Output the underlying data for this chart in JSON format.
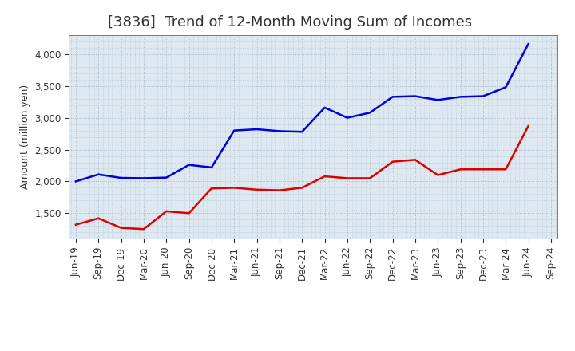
{
  "title": "[3836]  Trend of 12-Month Moving Sum of Incomes",
  "ylabel": "Amount (million yen)",
  "x_labels": [
    "Jun-19",
    "Sep-19",
    "Dec-19",
    "Mar-20",
    "Jun-20",
    "Sep-20",
    "Dec-20",
    "Mar-21",
    "Jun-21",
    "Sep-21",
    "Dec-21",
    "Mar-22",
    "Jun-22",
    "Sep-22",
    "Dec-22",
    "Mar-23",
    "Jun-23",
    "Sep-23",
    "Dec-23",
    "Mar-24",
    "Jun-24",
    "Sep-24"
  ],
  "ordinary_income": [
    2000,
    2110,
    2055,
    2050,
    2060,
    2260,
    2220,
    2800,
    2820,
    2790,
    2780,
    3160,
    3000,
    3080,
    3330,
    3340,
    3280,
    3330,
    3340,
    3480,
    4160,
    null
  ],
  "net_income": [
    1320,
    1420,
    1270,
    1250,
    1530,
    1500,
    1890,
    1900,
    1870,
    1860,
    1900,
    2080,
    2050,
    2050,
    2310,
    2340,
    2100,
    2190,
    2190,
    2190,
    2870,
    null
  ],
  "ordinary_color": "#0000dd",
  "net_color": "#dd0000",
  "ylim_min": 1100,
  "ylim_max": 4300,
  "yticks": [
    1500,
    2000,
    2500,
    3000,
    3500,
    4000
  ],
  "plot_bg_color": "#dde8f0",
  "fig_bg_color": "#ffffff",
  "grid_color": "#aab8c8",
  "title_fontsize": 13,
  "title_color": "#333333",
  "label_fontsize": 9,
  "tick_fontsize": 8.5,
  "legend_fontsize": 10
}
